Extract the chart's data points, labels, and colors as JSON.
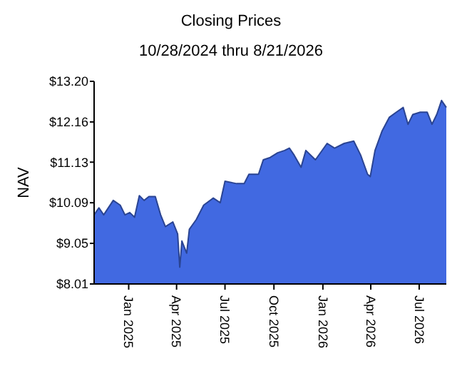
{
  "chart_data": {
    "type": "area",
    "title": "Closing Prices",
    "subtitle": "10/28/2024 thru 8/21/2026",
    "ylabel": "NAV",
    "x": [
      "2024-10-28",
      "2024-11-06",
      "2024-11-15",
      "2024-12-03",
      "2024-12-16",
      "2024-12-25",
      "2025-01-03",
      "2025-01-12",
      "2025-01-21",
      "2025-01-30",
      "2025-02-08",
      "2025-02-20",
      "2025-03-02",
      "2025-03-11",
      "2025-03-25",
      "2025-04-03",
      "2025-04-07",
      "2025-04-11",
      "2025-04-20",
      "2025-04-25",
      "2025-05-08",
      "2025-05-22",
      "2025-06-09",
      "2025-06-22",
      "2025-07-01",
      "2025-07-23",
      "2025-08-06",
      "2025-08-15",
      "2025-09-02",
      "2025-09-11",
      "2025-09-24",
      "2025-10-08",
      "2025-10-21",
      "2025-10-30",
      "2025-11-08",
      "2025-11-21",
      "2025-11-30",
      "2025-12-18",
      "2026-01-09",
      "2026-01-23",
      "2026-02-10",
      "2026-02-28",
      "2026-03-13",
      "2026-03-26",
      "2026-03-31",
      "2026-04-09",
      "2026-04-22",
      "2026-05-06",
      "2026-05-19",
      "2026-06-01",
      "2026-06-10",
      "2026-06-19",
      "2026-07-03",
      "2026-07-16",
      "2026-07-25",
      "2026-08-03",
      "2026-08-12",
      "2026-08-21"
    ],
    "series": [
      {
        "color": "#4169e1",
        "values": [
          9.78,
          9.96,
          9.78,
          10.15,
          10.03,
          9.78,
          9.84,
          9.72,
          10.27,
          10.15,
          10.25,
          10.25,
          9.78,
          9.48,
          9.6,
          9.29,
          8.44,
          9.11,
          8.8,
          9.41,
          9.66,
          10.03,
          10.21,
          10.09,
          10.64,
          10.58,
          10.58,
          10.82,
          10.82,
          11.19,
          11.25,
          11.37,
          11.43,
          11.49,
          11.31,
          11.0,
          11.43,
          11.19,
          11.61,
          11.49,
          11.61,
          11.67,
          11.31,
          10.82,
          10.76,
          11.43,
          11.92,
          12.28,
          12.41,
          12.53,
          12.1,
          12.35,
          12.41,
          12.41,
          12.1,
          12.35,
          12.71,
          12.53
        ]
      }
    ],
    "xlim": [
      "2024-10-28",
      "2026-08-21"
    ],
    "xticks": [
      {
        "value": "2025-01-01",
        "label": "Jan 2025"
      },
      {
        "value": "2025-04-01",
        "label": "Apr 2025"
      },
      {
        "value": "2025-07-01",
        "label": "Jul 2025"
      },
      {
        "value": "2025-10-01",
        "label": "Oct 2025"
      },
      {
        "value": "2026-01-01",
        "label": "Jan 2026"
      },
      {
        "value": "2026-04-01",
        "label": "Apr 2026"
      },
      {
        "value": "2026-07-01",
        "label": "Jul 2026"
      }
    ],
    "ylim": [
      8.01,
      13.2
    ],
    "yticks": [
      {
        "value": 8.01,
        "label": "$8.01"
      },
      {
        "value": 9.05,
        "label": "$9.05"
      },
      {
        "value": 10.09,
        "label": "$10.09"
      },
      {
        "value": 11.13,
        "label": "$11.13"
      },
      {
        "value": 12.16,
        "label": "$12.16"
      },
      {
        "value": 13.2,
        "label": "$13.20"
      }
    ],
    "grid": false
  }
}
